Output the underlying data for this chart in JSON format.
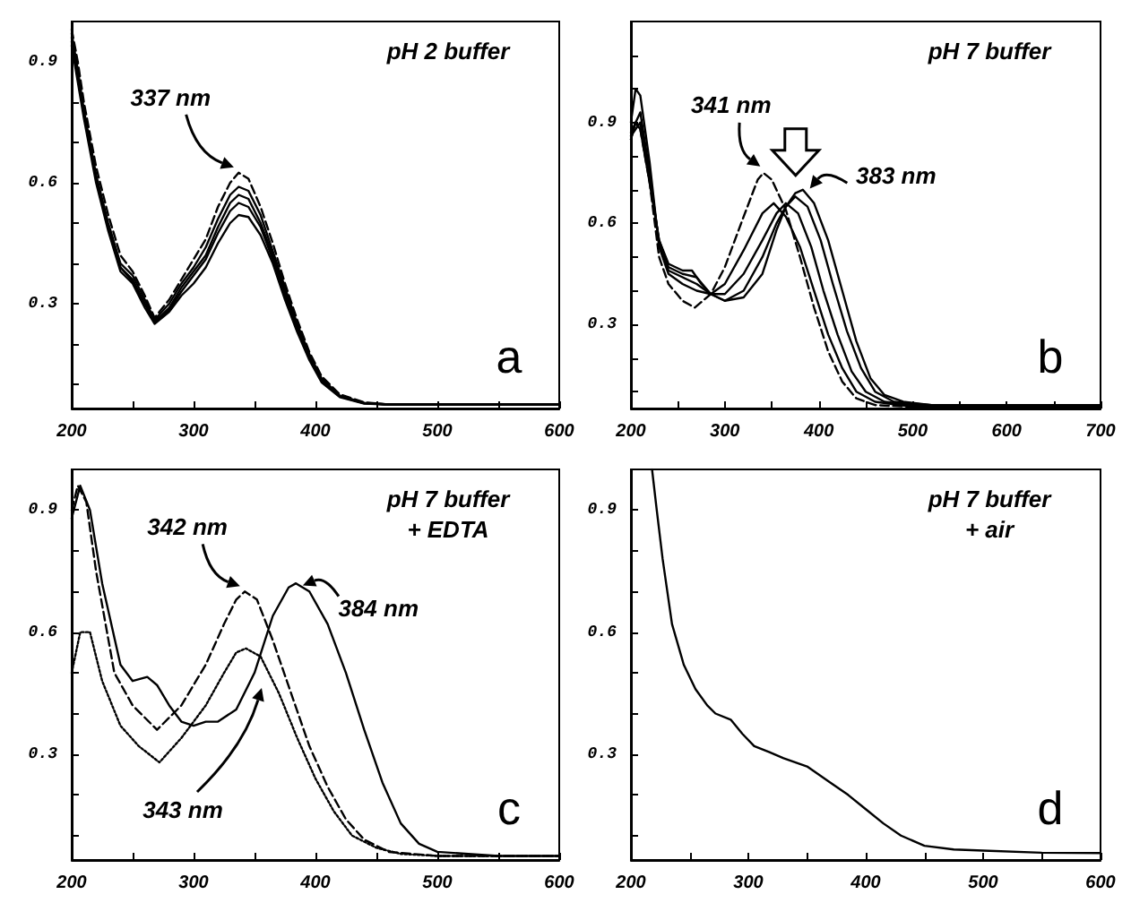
{
  "chart_data": [
    {
      "type": "line",
      "title": "pH 2 buffer",
      "xlim": [
        200,
        600
      ],
      "ylim": [
        0.04,
        1.0
      ],
      "xticks": [
        200,
        {
          "value": 250,
          "label": null
        },
        300,
        {
          "value": 350,
          "label": null
        },
        400,
        {
          "value": 450,
          "label": null
        },
        500,
        {
          "value": 550,
          "label": null
        },
        600
      ],
      "yticks": [
        {
          "value": 0.1,
          "label": null
        },
        {
          "value": 0.2,
          "label": null
        },
        0.3,
        {
          "value": 0.4,
          "label": null
        },
        {
          "value": 0.5,
          "label": null
        },
        0.6,
        {
          "value": 0.7,
          "label": null
        },
        {
          "value": 0.8,
          "label": null
        },
        0.9
      ],
      "annotations": [
        {
          "text": "337 nm",
          "x": 337,
          "y": 0.625
        },
        "a"
      ],
      "series": [
        {
          "color": "#000000",
          "line_style": "dashed",
          "x": [
            200,
            205,
            210,
            220,
            230,
            240,
            250,
            260,
            268,
            280,
            290,
            300,
            310,
            320,
            330,
            337,
            345,
            355,
            365,
            375,
            385,
            395,
            405,
            420,
            440,
            460,
            500,
            600
          ],
          "values": [
            0.98,
            0.9,
            0.8,
            0.64,
            0.52,
            0.42,
            0.38,
            0.32,
            0.265,
            0.31,
            0.36,
            0.41,
            0.46,
            0.54,
            0.6,
            0.625,
            0.61,
            0.54,
            0.45,
            0.35,
            0.26,
            0.18,
            0.12,
            0.075,
            0.055,
            0.05,
            0.05,
            0.05
          ]
        },
        {
          "color": "#000000",
          "line_style": "solid",
          "x": [
            200,
            205,
            210,
            220,
            230,
            240,
            250,
            260,
            268,
            280,
            290,
            300,
            310,
            320,
            330,
            337,
            345,
            355,
            365,
            375,
            385,
            395,
            405,
            420,
            440,
            460,
            500,
            600
          ],
          "values": [
            0.97,
            0.88,
            0.78,
            0.62,
            0.5,
            0.4,
            0.37,
            0.31,
            0.26,
            0.3,
            0.35,
            0.39,
            0.44,
            0.51,
            0.57,
            0.59,
            0.58,
            0.52,
            0.43,
            0.34,
            0.25,
            0.175,
            0.115,
            0.072,
            0.054,
            0.05,
            0.05,
            0.05
          ]
        },
        {
          "color": "#000000",
          "line_style": "solid",
          "x": [
            200,
            205,
            210,
            220,
            230,
            240,
            250,
            260,
            268,
            280,
            290,
            300,
            310,
            320,
            330,
            337,
            345,
            355,
            365,
            375,
            385,
            395,
            405,
            420,
            440,
            460,
            500,
            600
          ],
          "values": [
            0.96,
            0.87,
            0.77,
            0.61,
            0.49,
            0.39,
            0.36,
            0.3,
            0.255,
            0.29,
            0.34,
            0.38,
            0.42,
            0.49,
            0.55,
            0.57,
            0.56,
            0.5,
            0.42,
            0.33,
            0.245,
            0.17,
            0.112,
            0.07,
            0.053,
            0.05,
            0.05,
            0.05
          ]
        },
        {
          "color": "#000000",
          "line_style": "solid",
          "x": [
            200,
            205,
            210,
            220,
            230,
            240,
            250,
            260,
            268,
            280,
            290,
            300,
            310,
            320,
            330,
            337,
            345,
            355,
            365,
            375,
            385,
            395,
            405,
            420,
            440,
            460,
            500,
            600
          ],
          "values": [
            0.95,
            0.86,
            0.77,
            0.61,
            0.49,
            0.39,
            0.355,
            0.3,
            0.255,
            0.285,
            0.33,
            0.37,
            0.41,
            0.475,
            0.53,
            0.55,
            0.54,
            0.49,
            0.41,
            0.32,
            0.24,
            0.165,
            0.11,
            0.07,
            0.053,
            0.05,
            0.05,
            0.05
          ]
        },
        {
          "color": "#000000",
          "line_style": "solid",
          "x": [
            200,
            205,
            210,
            220,
            230,
            240,
            250,
            260,
            268,
            280,
            290,
            300,
            310,
            320,
            330,
            337,
            345,
            355,
            365,
            375,
            385,
            395,
            405,
            420,
            440,
            460,
            500,
            600
          ],
          "values": [
            0.94,
            0.85,
            0.76,
            0.6,
            0.48,
            0.38,
            0.35,
            0.29,
            0.25,
            0.28,
            0.32,
            0.35,
            0.39,
            0.45,
            0.5,
            0.52,
            0.515,
            0.47,
            0.4,
            0.31,
            0.23,
            0.16,
            0.105,
            0.068,
            0.052,
            0.05,
            0.05,
            0.05
          ]
        }
      ]
    },
    {
      "type": "line",
      "title": "pH 7 buffer",
      "xlim": [
        200,
        700
      ],
      "ylim": [
        0.05,
        1.2
      ],
      "xticks": [
        200,
        {
          "value": 250,
          "label": null
        },
        300,
        {
          "value": 350,
          "label": null
        },
        400,
        {
          "value": 450,
          "label": null
        },
        500,
        {
          "value": 550,
          "label": null
        },
        600,
        {
          "value": 650,
          "label": null
        },
        700
      ],
      "yticks": [
        {
          "value": 0.1,
          "label": null
        },
        {
          "value": 0.2,
          "label": null
        },
        0.3,
        {
          "value": 0.4,
          "label": null
        },
        {
          "value": 0.5,
          "label": null
        },
        0.6,
        {
          "value": 0.7,
          "label": null
        },
        {
          "value": 0.8,
          "label": null
        },
        0.9,
        {
          "value": 1.0,
          "label": null
        },
        {
          "value": 1.1,
          "label": null
        }
      ],
      "annotations": [
        {
          "text": "341 nm",
          "x": 341,
          "y": 0.75
        },
        {
          "text": "383 nm",
          "x": 383,
          "y": 0.7
        },
        "b"
      ],
      "series": [
        {
          "color": "#000000",
          "line_style": "dashed",
          "x": [
            200,
            205,
            210,
            220,
            230,
            240,
            255,
            268,
            285,
            300,
            320,
            335,
            341,
            350,
            365,
            380,
            395,
            410,
            425,
            440,
            460,
            500,
            600,
            700
          ],
          "values": [
            0.85,
            0.9,
            0.88,
            0.72,
            0.5,
            0.42,
            0.37,
            0.35,
            0.39,
            0.47,
            0.62,
            0.73,
            0.75,
            0.73,
            0.64,
            0.5,
            0.35,
            0.22,
            0.13,
            0.08,
            0.06,
            0.055,
            0.055,
            0.055
          ]
        },
        {
          "color": "#000000",
          "line_style": "solid",
          "x": [
            200,
            205,
            210,
            220,
            230,
            240,
            255,
            270,
            285,
            300,
            320,
            340,
            352,
            365,
            380,
            395,
            410,
            425,
            440,
            460,
            500,
            600,
            700
          ],
          "values": [
            0.9,
            1.0,
            0.98,
            0.78,
            0.53,
            0.45,
            0.42,
            0.4,
            0.39,
            0.42,
            0.52,
            0.63,
            0.66,
            0.62,
            0.53,
            0.4,
            0.27,
            0.17,
            0.1,
            0.07,
            0.055,
            0.055,
            0.055
          ]
        },
        {
          "color": "#000000",
          "line_style": "solid",
          "x": [
            200,
            210,
            220,
            230,
            240,
            255,
            270,
            285,
            300,
            320,
            340,
            355,
            365,
            378,
            392,
            405,
            420,
            435,
            450,
            470,
            500,
            700
          ],
          "values": [
            0.87,
            0.93,
            0.75,
            0.54,
            0.46,
            0.44,
            0.42,
            0.39,
            0.39,
            0.45,
            0.55,
            0.63,
            0.66,
            0.63,
            0.53,
            0.4,
            0.27,
            0.16,
            0.1,
            0.07,
            0.06,
            0.06
          ]
        },
        {
          "color": "#000000",
          "line_style": "solid",
          "x": [
            200,
            210,
            220,
            230,
            240,
            255,
            270,
            285,
            300,
            320,
            340,
            355,
            365,
            375,
            388,
            402,
            415,
            430,
            445,
            460,
            480,
            520,
            700
          ],
          "values": [
            0.86,
            0.9,
            0.73,
            0.55,
            0.47,
            0.45,
            0.44,
            0.39,
            0.37,
            0.4,
            0.5,
            0.6,
            0.65,
            0.68,
            0.65,
            0.55,
            0.42,
            0.28,
            0.17,
            0.1,
            0.07,
            0.06,
            0.06
          ]
        },
        {
          "color": "#000000",
          "line_style": "solid",
          "x": [
            200,
            205,
            210,
            220,
            230,
            240,
            255,
            265,
            275,
            285,
            300,
            320,
            340,
            355,
            365,
            375,
            383,
            395,
            410,
            425,
            440,
            455,
            470,
            490,
            520,
            600,
            700
          ],
          "values": [
            0.85,
            0.9,
            0.88,
            0.72,
            0.55,
            0.48,
            0.46,
            0.46,
            0.42,
            0.39,
            0.37,
            0.38,
            0.45,
            0.58,
            0.65,
            0.69,
            0.7,
            0.66,
            0.55,
            0.4,
            0.25,
            0.14,
            0.09,
            0.07,
            0.06,
            0.06,
            0.06
          ]
        }
      ]
    },
    {
      "type": "line",
      "title": "pH 7 buffer",
      "subtitle": "+ EDTA",
      "xlim": [
        200,
        600
      ],
      "ylim": [
        0.04,
        1.0
      ],
      "xticks": [
        200,
        {
          "value": 250,
          "label": null
        },
        300,
        {
          "value": 350,
          "label": null
        },
        400,
        {
          "value": 450,
          "label": null
        },
        500,
        {
          "value": 550,
          "label": null
        },
        600
      ],
      "yticks": [
        {
          "value": 0.1,
          "label": null
        },
        {
          "value": 0.2,
          "label": null
        },
        0.3,
        {
          "value": 0.4,
          "label": null
        },
        {
          "value": 0.5,
          "label": null
        },
        0.6,
        {
          "value": 0.7,
          "label": null
        },
        {
          "value": 0.8,
          "label": null
        },
        0.9
      ],
      "annotations": [
        {
          "text": "342 nm",
          "x": 342,
          "y": 0.7
        },
        {
          "text": "384 nm",
          "x": 384,
          "y": 0.72
        },
        "343 nm",
        "c"
      ],
      "series": [
        {
          "color": "#000000",
          "line_style": "solid",
          "x": [
            200,
            207,
            215,
            225,
            240,
            250,
            262,
            270,
            280,
            290,
            300,
            310,
            320,
            335,
            350,
            365,
            378,
            384,
            395,
            410,
            425,
            440,
            455,
            470,
            485,
            500,
            550,
            600
          ],
          "values": [
            0.88,
            0.96,
            0.9,
            0.72,
            0.52,
            0.48,
            0.49,
            0.47,
            0.42,
            0.38,
            0.37,
            0.38,
            0.38,
            0.41,
            0.5,
            0.64,
            0.71,
            0.72,
            0.7,
            0.62,
            0.5,
            0.36,
            0.23,
            0.13,
            0.08,
            0.06,
            0.05,
            0.05
          ]
        },
        {
          "color": "#000000",
          "line_style": "dashed",
          "x": [
            200,
            205,
            212,
            220,
            235,
            250,
            270,
            290,
            310,
            325,
            335,
            342,
            352,
            365,
            380,
            395,
            410,
            425,
            440,
            460,
            500,
            600
          ],
          "values": [
            0.9,
            0.96,
            0.92,
            0.75,
            0.5,
            0.42,
            0.36,
            0.42,
            0.52,
            0.62,
            0.68,
            0.7,
            0.68,
            0.58,
            0.45,
            0.32,
            0.22,
            0.14,
            0.09,
            0.06,
            0.05,
            0.05
          ]
        },
        {
          "color": "#000000",
          "line_style": "dotted",
          "x": [
            200,
            207,
            215,
            225,
            240,
            255,
            272,
            290,
            310,
            325,
            335,
            343,
            355,
            370,
            385,
            400,
            415,
            430,
            450,
            470,
            500,
            600
          ],
          "values": [
            0.5,
            0.6,
            0.6,
            0.48,
            0.37,
            0.32,
            0.28,
            0.34,
            0.42,
            0.5,
            0.55,
            0.56,
            0.54,
            0.45,
            0.34,
            0.24,
            0.16,
            0.1,
            0.07,
            0.055,
            0.05,
            0.05
          ]
        }
      ]
    },
    {
      "type": "line",
      "title": "pH 7 buffer",
      "subtitle": "+ air",
      "xlim": [
        200,
        600
      ],
      "ylim": [
        0.04,
        1.0
      ],
      "xticks": [
        200,
        {
          "value": 250,
          "label": null
        },
        300,
        {
          "value": 350,
          "label": null
        },
        400,
        {
          "value": 450,
          "label": null
        },
        500,
        {
          "value": 550,
          "label": null
        },
        600
      ],
      "yticks": [
        {
          "value": 0.1,
          "label": null
        },
        {
          "value": 0.2,
          "label": null
        },
        0.3,
        {
          "value": 0.4,
          "label": null
        },
        {
          "value": 0.5,
          "label": null
        },
        0.6,
        {
          "value": 0.7,
          "label": null
        },
        {
          "value": 0.8,
          "label": null
        },
        0.9
      ],
      "annotations": [
        "d"
      ],
      "series": [
        {
          "color": "#000000",
          "line_style": "solid",
          "x": [
            218,
            222,
            227,
            235,
            245,
            255,
            265,
            272,
            285,
            295,
            305,
            318,
            330,
            350,
            370,
            385,
            400,
            415,
            430,
            450,
            475,
            500,
            550,
            600
          ],
          "values": [
            1.0,
            0.9,
            0.78,
            0.62,
            0.52,
            0.46,
            0.42,
            0.4,
            0.385,
            0.35,
            0.32,
            0.305,
            0.29,
            0.27,
            0.23,
            0.2,
            0.165,
            0.13,
            0.1,
            0.075,
            0.066,
            0.063,
            0.058,
            0.057
          ]
        }
      ]
    }
  ]
}
